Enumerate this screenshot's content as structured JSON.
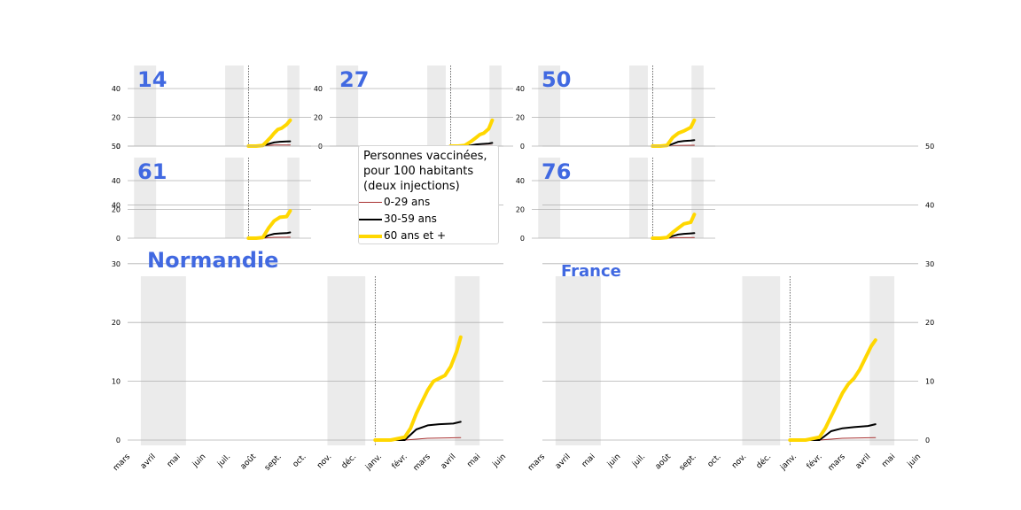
{
  "legend": {
    "title_lines": [
      "Personnes vaccinées,",
      "pour 100 habitants",
      "(deux injections)"
    ],
    "items": [
      {
        "label": "0-29 ans",
        "color": "#a83232"
      },
      {
        "label": "30-59 ans",
        "color": "#000000"
      },
      {
        "label": "60 ans et +",
        "color": "#ffd700"
      }
    ]
  },
  "colors": {
    "title": "#4169e1",
    "shade": "#ebebeb",
    "grid": "#b0b0b0"
  },
  "chart_data": [
    {
      "type": "line",
      "title": "14",
      "yticks": [
        0,
        20,
        40
      ],
      "ylim": [
        0,
        40
      ],
      "series": [
        {
          "x": [
            "2020-12-27",
            "2021-01-15",
            "2021-02-01",
            "2021-02-15",
            "2021-03-01",
            "2021-03-15",
            "2021-04-01",
            "2021-04-10"
          ],
          "values": [
            0,
            0,
            0,
            0.5,
            0.8,
            0.8,
            0.8,
            0.8
          ]
        },
        {
          "x": [
            "2020-12-27",
            "2021-01-15",
            "2021-02-01",
            "2021-02-15",
            "2021-03-01",
            "2021-03-15",
            "2021-04-01",
            "2021-04-10"
          ],
          "values": [
            0,
            0,
            0,
            1.5,
            2.5,
            3,
            3.2,
            3.3
          ]
        },
        {
          "x": [
            "2020-12-27",
            "2021-01-15",
            "2021-02-01",
            "2021-02-10",
            "2021-02-20",
            "2021-03-01",
            "2021-03-10",
            "2021-03-20",
            "2021-04-01",
            "2021-04-10"
          ],
          "values": [
            0,
            0,
            0.5,
            3,
            6,
            9,
            11.5,
            12.5,
            15,
            18
          ]
        }
      ]
    },
    {
      "type": "line",
      "title": "27",
      "yticks": [
        0,
        20,
        40
      ],
      "ylim": [
        0,
        40
      ],
      "series": [
        {
          "x": [
            "2020-12-27",
            "2021-01-15",
            "2021-02-01",
            "2021-03-01",
            "2021-04-10"
          ],
          "values": [
            0,
            0,
            0,
            0.3,
            0.4
          ]
        },
        {
          "x": [
            "2020-12-27",
            "2021-01-15",
            "2021-02-01",
            "2021-02-15",
            "2021-03-01",
            "2021-03-15",
            "2021-04-01",
            "2021-04-10"
          ],
          "values": [
            0,
            0,
            0,
            0.5,
            1.2,
            1.5,
            1.8,
            2.2
          ]
        },
        {
          "x": [
            "2020-12-27",
            "2021-01-15",
            "2021-02-01",
            "2021-02-15",
            "2021-03-01",
            "2021-03-10",
            "2021-03-20",
            "2021-04-01",
            "2021-04-10"
          ],
          "values": [
            0,
            0,
            0.5,
            3,
            6,
            8,
            9,
            12,
            18
          ]
        }
      ]
    },
    {
      "type": "line",
      "title": "50",
      "yticks": [
        0,
        20,
        40
      ],
      "ylim": [
        0,
        40
      ],
      "series": [
        {
          "x": [
            "2020-12-27",
            "2021-01-15",
            "2021-02-01",
            "2021-03-01",
            "2021-04-10"
          ],
          "values": [
            0,
            0,
            0,
            0.5,
            0.6
          ]
        },
        {
          "x": [
            "2020-12-27",
            "2021-01-15",
            "2021-02-01",
            "2021-02-15",
            "2021-03-01",
            "2021-03-15",
            "2021-04-01",
            "2021-04-10"
          ],
          "values": [
            0,
            0,
            0,
            1.5,
            3,
            3.5,
            3.8,
            4.2
          ]
        },
        {
          "x": [
            "2020-12-27",
            "2021-01-15",
            "2021-02-01",
            "2021-02-15",
            "2021-03-01",
            "2021-03-15",
            "2021-04-01",
            "2021-04-10"
          ],
          "values": [
            0,
            0,
            0.5,
            6,
            9,
            10.5,
            13,
            18
          ]
        }
      ]
    },
    {
      "type": "line",
      "title": "61",
      "yticks": [
        0,
        20,
        40
      ],
      "ylim": [
        0,
        40
      ],
      "series": [
        {
          "x": [
            "2020-12-27",
            "2021-01-15",
            "2021-02-01",
            "2021-03-01",
            "2021-04-10"
          ],
          "values": [
            0,
            0,
            0,
            0.6,
            0.7
          ]
        },
        {
          "x": [
            "2020-12-27",
            "2021-01-15",
            "2021-02-01",
            "2021-02-15",
            "2021-03-01",
            "2021-03-15",
            "2021-04-01",
            "2021-04-10"
          ],
          "values": [
            0,
            0,
            0,
            2,
            3,
            3.3,
            3.5,
            4
          ]
        },
        {
          "x": [
            "2020-12-27",
            "2021-01-15",
            "2021-02-01",
            "2021-02-15",
            "2021-03-01",
            "2021-03-15",
            "2021-04-01",
            "2021-04-10"
          ],
          "values": [
            0,
            0,
            0.5,
            7,
            12,
            14.5,
            15,
            19
          ]
        }
      ]
    },
    {
      "type": "line",
      "title": "76",
      "yticks": [
        0,
        20,
        40
      ],
      "ylim": [
        0,
        40
      ],
      "series": [
        {
          "x": [
            "2020-12-27",
            "2021-01-15",
            "2021-02-01",
            "2021-03-01",
            "2021-04-10"
          ],
          "values": [
            0,
            0,
            0,
            0.4,
            0.5
          ]
        },
        {
          "x": [
            "2020-12-27",
            "2021-01-15",
            "2021-02-01",
            "2021-02-15",
            "2021-03-01",
            "2021-03-15",
            "2021-04-01",
            "2021-04-10"
          ],
          "values": [
            0,
            0,
            0,
            1.5,
            2.5,
            3,
            3.3,
            3.5
          ]
        },
        {
          "x": [
            "2020-12-27",
            "2021-01-15",
            "2021-02-01",
            "2021-02-15",
            "2021-03-01",
            "2021-03-15",
            "2021-04-01",
            "2021-04-10"
          ],
          "values": [
            0,
            0,
            0.5,
            4,
            7,
            10,
            11,
            16.5
          ]
        }
      ]
    },
    {
      "type": "line",
      "title": "Normandie",
      "xticks": [
        "mars",
        "avril",
        "mai",
        "juin",
        "juil.",
        "août",
        "sept.",
        "oct.",
        "nov.",
        "déc.",
        "janv.",
        "févr.",
        "mars",
        "avril",
        "mai",
        "juin"
      ],
      "yticks": [
        0,
        10,
        20,
        30,
        40,
        50
      ],
      "ylim": [
        0,
        50
      ],
      "series": [
        {
          "x": [
            "2020-12-27",
            "2021-01-15",
            "2021-02-01",
            "2021-03-01",
            "2021-04-10"
          ],
          "values": [
            0,
            0,
            0,
            0.3,
            0.4
          ]
        },
        {
          "x": [
            "2020-12-27",
            "2021-01-15",
            "2021-02-01",
            "2021-02-15",
            "2021-03-01",
            "2021-03-15",
            "2021-04-01",
            "2021-04-10"
          ],
          "values": [
            0,
            0,
            0,
            1.8,
            2.5,
            2.7,
            2.8,
            3.1
          ]
        },
        {
          "x": [
            "2020-12-27",
            "2021-01-15",
            "2021-02-01",
            "2021-02-08",
            "2021-02-15",
            "2021-02-22",
            "2021-03-01",
            "2021-03-08",
            "2021-03-15",
            "2021-03-22",
            "2021-03-29",
            "2021-04-05",
            "2021-04-10"
          ],
          "values": [
            0,
            0,
            0.5,
            2,
            4.5,
            6.5,
            8.5,
            10,
            10.5,
            11,
            12.5,
            15,
            17.5
          ]
        }
      ]
    },
    {
      "type": "line",
      "title": "France",
      "xticks": [
        "mars",
        "avril",
        "mai",
        "juin",
        "juil.",
        "août",
        "sept.",
        "oct.",
        "nov.",
        "déc.",
        "janv.",
        "févr.",
        "mars",
        "avril",
        "mai",
        "juin"
      ],
      "yticks": [
        0,
        10,
        20,
        30,
        40,
        50
      ],
      "ylim": [
        0,
        50
      ],
      "series": [
        {
          "x": [
            "2020-12-27",
            "2021-01-15",
            "2021-02-01",
            "2021-03-01",
            "2021-04-10"
          ],
          "values": [
            0,
            0,
            0,
            0.3,
            0.4
          ]
        },
        {
          "x": [
            "2020-12-27",
            "2021-01-15",
            "2021-02-01",
            "2021-02-15",
            "2021-03-01",
            "2021-03-15",
            "2021-04-01",
            "2021-04-10"
          ],
          "values": [
            0,
            0,
            0,
            1.5,
            2,
            2.2,
            2.4,
            2.7
          ]
        },
        {
          "x": [
            "2020-12-27",
            "2021-01-15",
            "2021-02-01",
            "2021-02-08",
            "2021-02-15",
            "2021-02-22",
            "2021-03-01",
            "2021-03-08",
            "2021-03-15",
            "2021-03-22",
            "2021-03-29",
            "2021-04-05",
            "2021-04-10"
          ],
          "values": [
            0,
            0,
            0.5,
            2,
            4,
            6,
            8,
            9.5,
            10.5,
            12,
            14,
            16,
            17
          ]
        }
      ]
    }
  ]
}
